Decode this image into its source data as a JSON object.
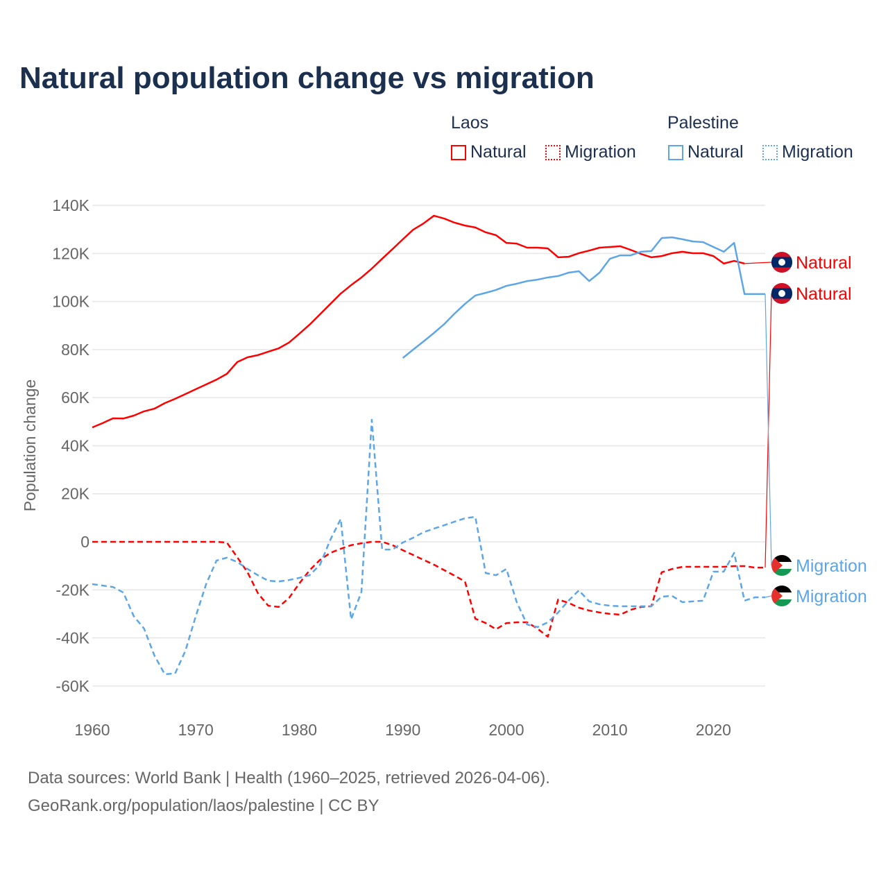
{
  "title": "Natural population change vs migration",
  "legend": {
    "groups": [
      {
        "name": "Laos",
        "color": "#ff0000",
        "items": [
          "Natural",
          "Migration"
        ]
      },
      {
        "name": "Palestine",
        "color": "#5ca6e8",
        "items": [
          "Natural",
          "Migration"
        ]
      }
    ]
  },
  "footer": {
    "line1": "Data sources: World Bank | Health (1960–2025, retrieved 2026-04-06).",
    "line2": "GeoRank.org/population/laos/palestine | CC BY"
  },
  "chart_data": {
    "type": "line",
    "title": "Natural population change vs migration",
    "xlabel": "",
    "ylabel": "Population change",
    "xlim": [
      1960,
      2025
    ],
    "ylim": [
      -70000,
      145000
    ],
    "xticks": [
      1960,
      1970,
      1980,
      1990,
      2000,
      2010,
      2020
    ],
    "yticks": [
      140000,
      120000,
      100000,
      80000,
      60000,
      40000,
      20000,
      0,
      -20000,
      -40000,
      -60000
    ],
    "ytick_labels": [
      "140K",
      "120K",
      "100K",
      "80K",
      "60K",
      "40K",
      "20K",
      "0",
      "-20K",
      "-40K",
      "-60K"
    ],
    "grid": true,
    "series": [
      {
        "name": "Natural",
        "country": "Laos",
        "style": "solid",
        "color": "#ff0000",
        "start": 1960,
        "values": [
          47.6,
          49.4,
          51.4,
          51.3,
          52.5,
          54.3,
          55.4,
          57.7,
          59.5,
          61.5,
          63.5,
          65.5,
          67.5,
          69.9,
          74.8,
          76.8,
          77.7,
          79.1,
          80.5,
          82.9,
          86.6,
          90.4,
          94.7,
          99.0,
          103.3,
          106.8,
          110.0,
          113.7,
          117.8,
          121.8,
          125.9,
          129.9,
          132.5,
          135.7,
          134.5,
          132.8,
          131.6,
          130.8,
          128.8,
          127.6,
          124.4,
          124.1,
          122.4,
          122.4,
          122.1,
          118.4,
          118.6,
          120.1,
          121.2,
          122.4,
          122.7,
          123.0,
          121.5,
          119.8,
          118.4,
          118.9,
          120.1,
          120.7,
          120.1,
          120.1,
          118.9,
          115.8,
          116.9,
          115.8
        ]
      },
      {
        "name": "Migration",
        "country": "Laos",
        "style": "dashed",
        "color": "#ff0000",
        "start": 1960,
        "values": [
          0,
          0,
          0,
          0,
          0,
          0,
          0,
          0,
          0,
          0,
          0,
          0,
          0,
          -0.3,
          -6.4,
          -12.7,
          -21.4,
          -26.6,
          -27.1,
          -23.4,
          -17.3,
          -11.8,
          -7.5,
          -4.6,
          -2.9,
          -1.4,
          -0.6,
          0,
          0,
          -1.4,
          -3.5,
          -5.5,
          -7.5,
          -9.5,
          -11.8,
          -14.1,
          -16.5,
          -32.0,
          -33.8,
          -36.4,
          -33.8,
          -33.5,
          -33.5,
          -36.1,
          -39.5,
          -24.0,
          -25.4,
          -27.4,
          -28.6,
          -29.4,
          -30.0,
          -30.3,
          -28.3,
          -27.1,
          -26.8,
          -12.7,
          -11.3,
          -10.4,
          -10.4,
          -10.4,
          -10.4,
          -10.4,
          -10.1,
          -10.1,
          -10.7,
          -10.7
        ]
      },
      {
        "name": "Natural",
        "country": "Palestine",
        "style": "solid",
        "color": "#5ca6e8",
        "start": 1990,
        "values": [
          76.5,
          80.0,
          83.4,
          86.9,
          90.6,
          95.0,
          99.0,
          102.5,
          103.6,
          104.8,
          106.5,
          107.4,
          108.5,
          109.1,
          110.0,
          110.6,
          112.0,
          112.6,
          108.5,
          112.0,
          117.8,
          119.2,
          119.2,
          120.7,
          121.0,
          126.4,
          126.7,
          125.9,
          125.0,
          124.7,
          122.7,
          120.7,
          124.4,
          103.1,
          103.1,
          103.1
        ]
      },
      {
        "name": "Migration",
        "country": "Palestine",
        "style": "dashed",
        "color": "#5ca6e8",
        "start": 1960,
        "values": [
          -17.6,
          -18.2,
          -18.8,
          -21.1,
          -30.9,
          -36.1,
          -47.3,
          -55.1,
          -54.8,
          -45.3,
          -30.9,
          -17.6,
          -7.8,
          -6.6,
          -8.4,
          -11.3,
          -13.9,
          -16.2,
          -16.5,
          -15.9,
          -15.0,
          -13.9,
          -9.5,
          0.9,
          9.5,
          -32.3,
          -20.8,
          50.8,
          -3.2,
          -3.2,
          -0.3,
          1.7,
          4.0,
          5.5,
          6.9,
          8.4,
          9.8,
          10.4,
          -13.0,
          -13.9,
          -11.3,
          -25.1,
          -34.4,
          -35.5,
          -33.5,
          -29.4,
          -24.5,
          -20.2,
          -24.8,
          -26.0,
          -26.6,
          -26.8,
          -26.8,
          -26.8,
          -26.8,
          -22.8,
          -22.5,
          -25.1,
          -24.8,
          -24.5,
          -12.4,
          -12.4,
          -4.6,
          -24.5,
          -23.1,
          -23.1
        ]
      }
    ],
    "value_unit": "thousands",
    "end_labels": [
      "Natural",
      "Natural",
      "Migration",
      "Migration"
    ]
  }
}
